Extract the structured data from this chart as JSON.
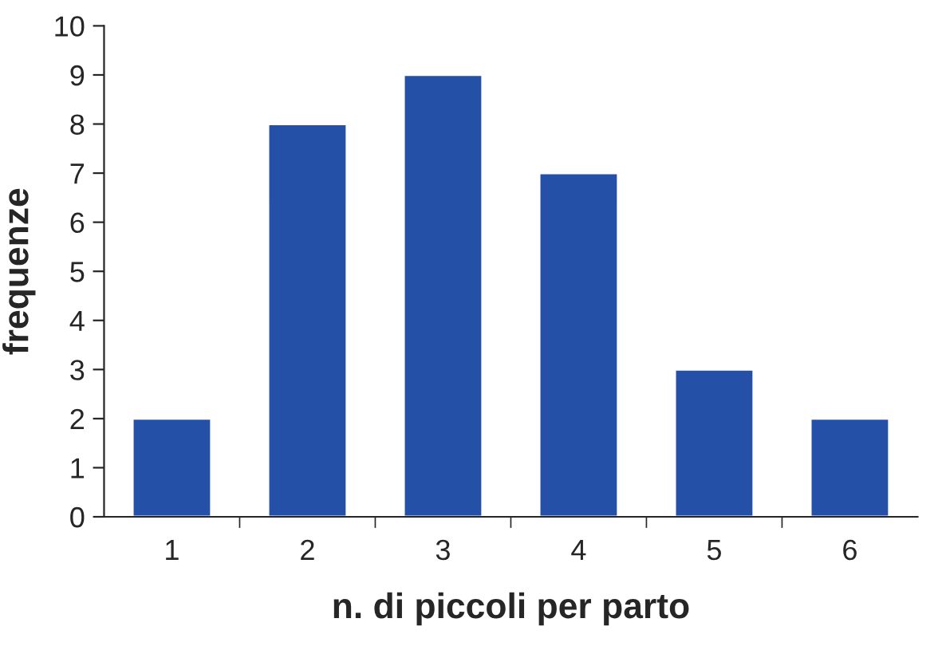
{
  "chart_data": {
    "type": "bar",
    "xlabel": "n. di piccoli per parto",
    "ylabel": "frequenze",
    "categories": [
      "1",
      "2",
      "3",
      "4",
      "5",
      "6"
    ],
    "values": [
      2,
      8,
      9,
      7,
      3,
      2
    ],
    "color": "#2450a8",
    "ylim": [
      0,
      10
    ],
    "yticks": [
      0,
      1,
      2,
      3,
      4,
      5,
      6,
      7,
      8,
      9,
      10
    ],
    "grid": false
  }
}
